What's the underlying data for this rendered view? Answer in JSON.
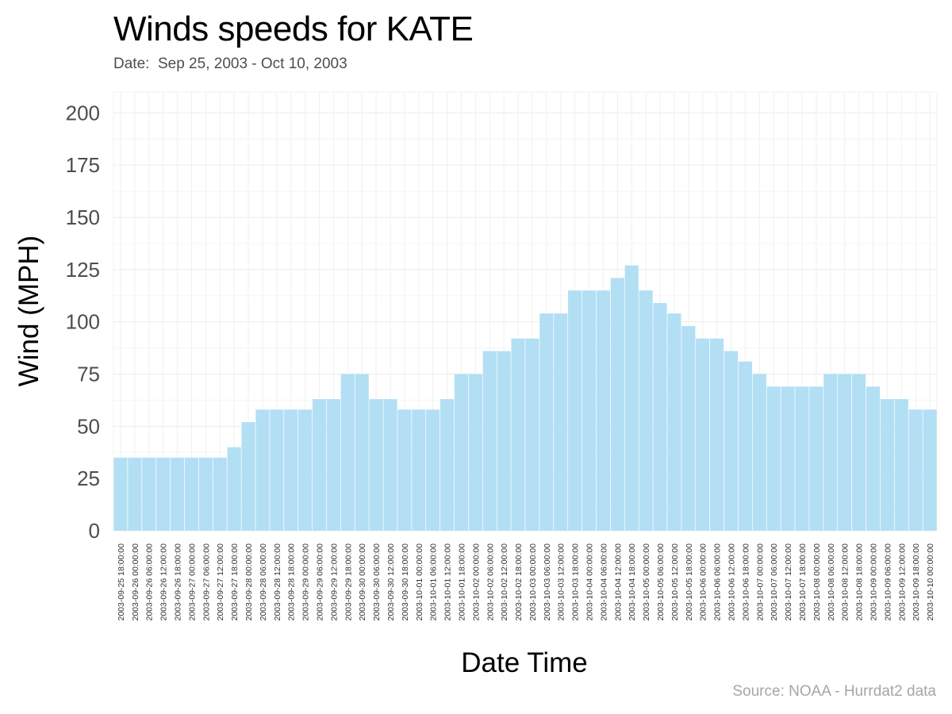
{
  "chart_data": {
    "type": "bar",
    "title": "Winds speeds for KATE",
    "subtitle": "Date:  Sep 25, 2003 - Oct 10, 2003",
    "caption": "Source: NOAA - Hurrdat2 data",
    "xlabel": "Date Time",
    "ylabel": "Wind (MPH)",
    "ylim": [
      0,
      210
    ],
    "yticks": [
      0,
      25,
      50,
      75,
      100,
      125,
      150,
      175,
      200
    ],
    "grid": true,
    "legend": "none",
    "bar_color": "#b3dff4",
    "categories": [
      "2003-09-25 18:00:00",
      "2003-09-26 00:00:00",
      "2003-09-26 06:00:00",
      "2003-09-26 12:00:00",
      "2003-09-26 18:00:00",
      "2003-09-27 00:00:00",
      "2003-09-27 06:00:00",
      "2003-09-27 12:00:00",
      "2003-09-27 18:00:00",
      "2003-09-28 00:00:00",
      "2003-09-28 06:00:00",
      "2003-09-28 12:00:00",
      "2003-09-28 18:00:00",
      "2003-09-29 00:00:00",
      "2003-09-29 06:00:00",
      "2003-09-29 12:00:00",
      "2003-09-29 18:00:00",
      "2003-09-30 00:00:00",
      "2003-09-30 06:00:00",
      "2003-09-30 12:00:00",
      "2003-09-30 18:00:00",
      "2003-10-01 00:00:00",
      "2003-10-01 06:00:00",
      "2003-10-01 12:00:00",
      "2003-10-01 18:00:00",
      "2003-10-02 00:00:00",
      "2003-10-02 06:00:00",
      "2003-10-02 12:00:00",
      "2003-10-02 18:00:00",
      "2003-10-03 00:00:00",
      "2003-10-03 06:00:00",
      "2003-10-03 12:00:00",
      "2003-10-03 18:00:00",
      "2003-10-04 00:00:00",
      "2003-10-04 06:00:00",
      "2003-10-04 12:00:00",
      "2003-10-04 18:00:00",
      "2003-10-05 00:00:00",
      "2003-10-05 06:00:00",
      "2003-10-05 12:00:00",
      "2003-10-05 18:00:00",
      "2003-10-06 00:00:00",
      "2003-10-06 06:00:00",
      "2003-10-06 12:00:00",
      "2003-10-06 18:00:00",
      "2003-10-07 00:00:00",
      "2003-10-07 06:00:00",
      "2003-10-07 12:00:00",
      "2003-10-07 18:00:00",
      "2003-10-08 00:00:00",
      "2003-10-08 06:00:00",
      "2003-10-08 12:00:00",
      "2003-10-08 18:00:00",
      "2003-10-09 00:00:00",
      "2003-10-09 06:00:00",
      "2003-10-09 12:00:00",
      "2003-10-09 18:00:00",
      "2003-10-10 00:00:00"
    ],
    "values": [
      35,
      35,
      35,
      35,
      35,
      35,
      35,
      35,
      40,
      52,
      58,
      58,
      58,
      58,
      63,
      63,
      75,
      75,
      63,
      63,
      58,
      58,
      58,
      63,
      75,
      75,
      86,
      86,
      92,
      92,
      104,
      104,
      115,
      115,
      115,
      121,
      127,
      115,
      109,
      104,
      98,
      92,
      92,
      86,
      81,
      75,
      69,
      69,
      69,
      69,
      75,
      75,
      75,
      69,
      63,
      63,
      58,
      58
    ]
  }
}
